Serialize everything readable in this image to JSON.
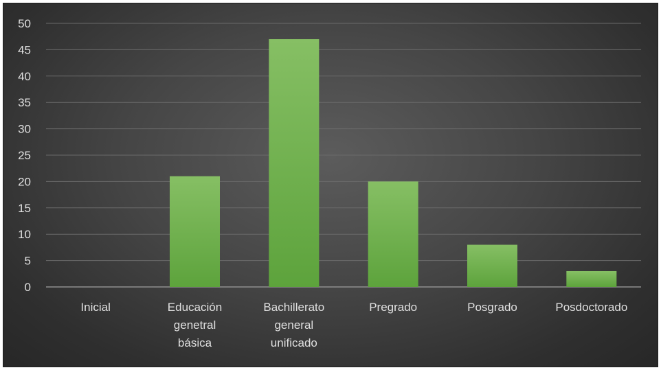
{
  "chart_data": {
    "type": "bar",
    "categories": [
      [
        "Inicial"
      ],
      [
        "Educación",
        "genetral",
        "básica"
      ],
      [
        "Bachillerato",
        "general",
        "unificado"
      ],
      [
        "Pregrado"
      ],
      [
        "Posgrado"
      ],
      [
        "Posdoctorado"
      ]
    ],
    "values": [
      0,
      21,
      47,
      20,
      8,
      3
    ],
    "ylim": [
      0,
      50
    ],
    "yticks": [
      0,
      5,
      10,
      15,
      20,
      25,
      30,
      35,
      40,
      45,
      50
    ],
    "grid": true,
    "legend": "none",
    "colors": {
      "bar_top": "#86bf64",
      "bar_bottom": "#5da33c",
      "grid": "#6a6a6a",
      "axis": "#8f8f8f",
      "text": "#e0e0e0"
    }
  }
}
